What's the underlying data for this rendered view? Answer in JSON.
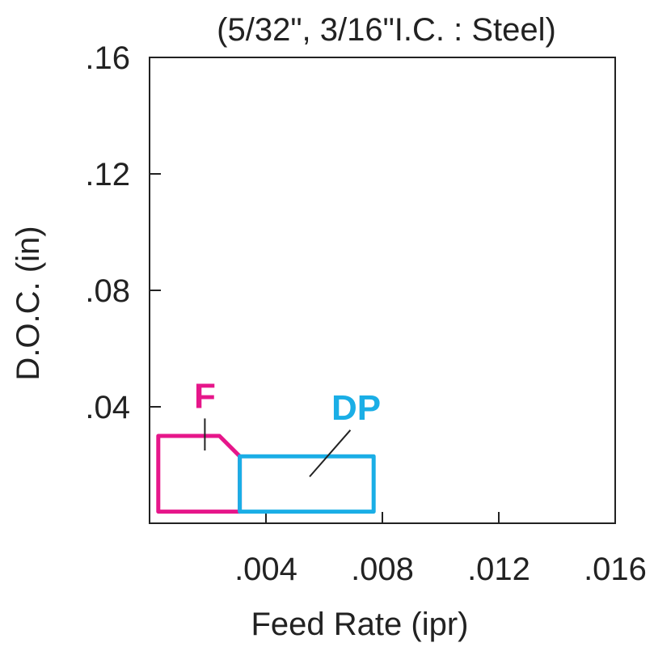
{
  "chart_data": {
    "type": "area",
    "title": "(5/32\", 3/16\"I.C. : Steel)",
    "xlabel": "Feed Rate (ipr)",
    "ylabel": "D.O.C. (in)",
    "xlim": [
      0,
      0.016
    ],
    "ylim": [
      0,
      0.16
    ],
    "x_ticks": [
      {
        "value": 0.004,
        "label": ".004"
      },
      {
        "value": 0.008,
        "label": ".008"
      },
      {
        "value": 0.012,
        "label": ".012"
      },
      {
        "value": 0.016,
        "label": ".016"
      }
    ],
    "y_ticks": [
      {
        "value": 0.04,
        "label": ".04"
      },
      {
        "value": 0.08,
        "label": ".08"
      },
      {
        "value": 0.12,
        "label": ".12"
      },
      {
        "value": 0.16,
        "label": ".16"
      }
    ],
    "grid": false,
    "regions": [
      {
        "label": "F",
        "color": "#e6168a",
        "points": [
          [
            0.0003,
            0.004
          ],
          [
            0.0003,
            0.03
          ],
          [
            0.0024,
            0.03
          ],
          [
            0.0031,
            0.023
          ],
          [
            0.0031,
            0.004
          ]
        ],
        "label_pos": [
          0.0019,
          0.044
        ],
        "leader": [
          [
            0.0019,
            0.036
          ],
          [
            0.0019,
            0.025
          ]
        ]
      },
      {
        "label": "DP",
        "color": "#1aaee6",
        "points": [
          [
            0.0031,
            0.004
          ],
          [
            0.0031,
            0.023
          ],
          [
            0.0077,
            0.023
          ],
          [
            0.0077,
            0.004
          ]
        ],
        "label_pos": [
          0.0071,
          0.04
        ],
        "leader": [
          [
            0.0069,
            0.032
          ],
          [
            0.0055,
            0.016
          ]
        ]
      }
    ]
  }
}
